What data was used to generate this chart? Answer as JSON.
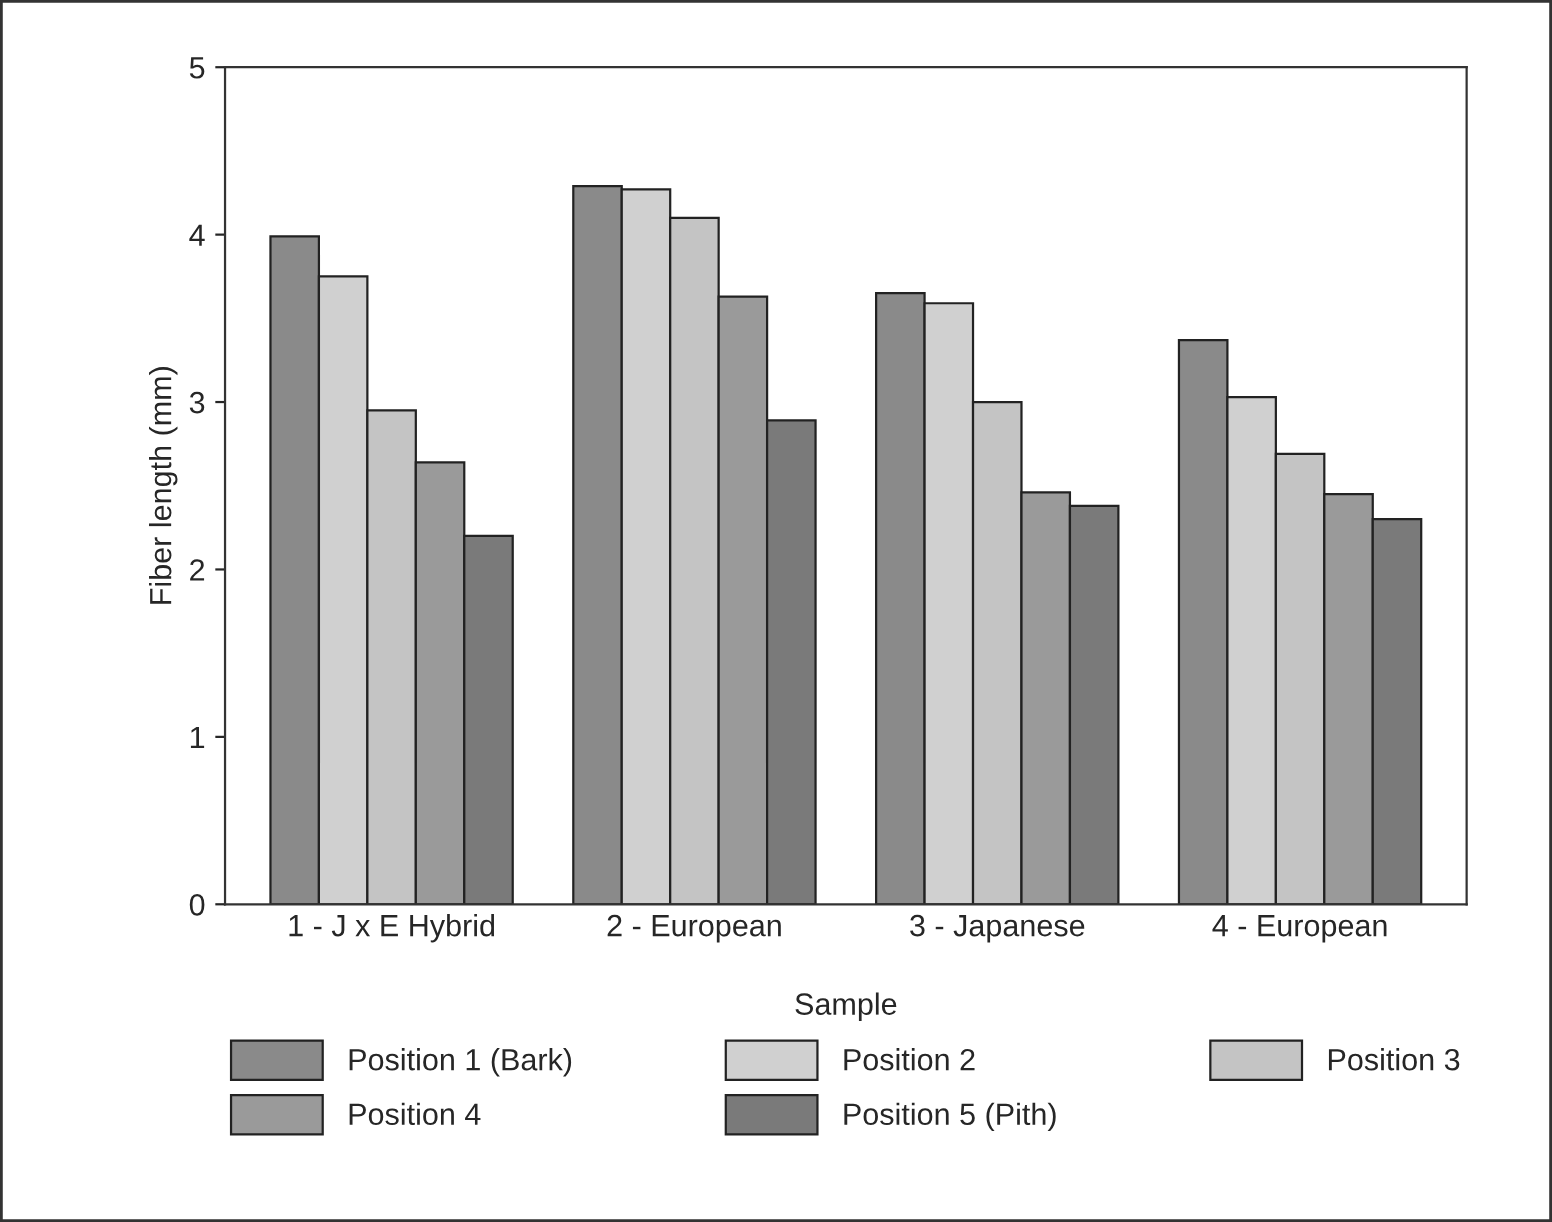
{
  "chart_data": {
    "type": "bar",
    "xlabel": "Sample",
    "ylabel": "Fiber length (mm)",
    "categories": [
      "1 - J x E Hybrid",
      "2 - European",
      "3 - Japanese",
      "4 - European"
    ],
    "series": [
      {
        "name": "Position 1 (Bark)",
        "color": "#8a8a8a",
        "values": [
          3.99,
          4.29,
          3.65,
          3.37
        ]
      },
      {
        "name": "Position 2",
        "color": "#d0d0d0",
        "values": [
          3.75,
          4.27,
          3.59,
          3.03
        ]
      },
      {
        "name": "Position 3",
        "color": "#c4c4c4",
        "values": [
          2.95,
          4.1,
          3.0,
          2.69
        ]
      },
      {
        "name": "Position 4",
        "color": "#9a9a9a",
        "values": [
          2.64,
          3.63,
          2.46,
          2.45
        ]
      },
      {
        "name": "Position 5 (Pith)",
        "color": "#7a7a7a",
        "values": [
          2.2,
          2.89,
          2.38,
          2.3
        ]
      }
    ],
    "ylim": [
      0,
      5
    ],
    "yticks": [
      0,
      1,
      2,
      3,
      4,
      5
    ],
    "grid": false,
    "legend": "bottom"
  }
}
